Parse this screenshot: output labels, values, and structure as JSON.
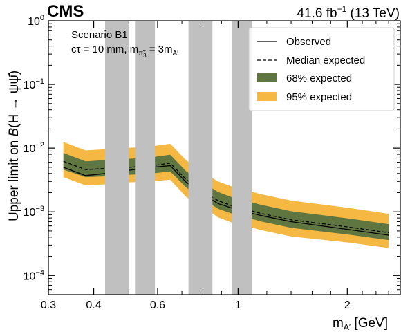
{
  "header": {
    "experiment": "CMS",
    "lumi_value": "41.6 fb",
    "lumi_exp": "−1",
    "energy": "(13 TeV)"
  },
  "annotation": {
    "scenario": "Scenario B1",
    "ctau_text": "cτ = 10 mm, m",
    "ctau_sub": "π̃",
    "ctau_sub2": "3",
    "ctau_mid": " = 3m",
    "ctau_sub3": "A′"
  },
  "axes": {
    "ylabel_main": "Upper limit on ",
    "ylabel_b": "B",
    "ylabel_proc": "(H → ψψ̄)",
    "xlabel_main": "m",
    "xlabel_sub": "A′",
    "xlabel_unit": " [GeV]"
  },
  "legend": {
    "observed": "Observed",
    "median": "Median expected",
    "band68": "68% expected",
    "band95": "95% expected"
  },
  "colors": {
    "band68": "#607641",
    "band95": "#F5B843",
    "veto": "#c0c0c0",
    "line": "#000000"
  },
  "chart_data": {
    "type": "line",
    "xscale": "log",
    "yscale": "log",
    "xlim": [
      0.3,
      2.8
    ],
    "ylim": [
      5e-05,
      1.0
    ],
    "x_ticks": [
      {
        "value": 0.3,
        "label": "0.3"
      },
      {
        "value": 0.4,
        "label": "0.4"
      },
      {
        "value": 0.6,
        "label": "0.6"
      },
      {
        "value": 1.0,
        "label": "1"
      },
      {
        "value": 2.0,
        "label": "2"
      }
    ],
    "y_ticks": [
      {
        "value": 0.0001,
        "base": "10",
        "exp": "−4"
      },
      {
        "value": 0.001,
        "base": "10",
        "exp": "−3"
      },
      {
        "value": 0.01,
        "base": "10",
        "exp": "−2"
      },
      {
        "value": 0.1,
        "base": "10",
        "exp": "−1"
      },
      {
        "value": 1.0,
        "base": "10",
        "exp": "0"
      }
    ],
    "veto_bands": [
      [
        0.43,
        0.5
      ],
      [
        0.52,
        0.59
      ],
      [
        0.73,
        0.85
      ],
      [
        0.96,
        1.09
      ]
    ],
    "x": [
      0.33,
      0.38,
      0.43,
      0.5,
      0.58,
      0.65,
      0.72,
      0.8,
      0.88,
      0.96,
      1.05,
      1.15,
      1.4,
      2.0,
      2.6
    ],
    "series": [
      {
        "name": "Observed",
        "values": [
          0.005,
          0.0037,
          0.004,
          0.0045,
          0.005,
          0.0053,
          0.0029,
          0.0019,
          0.00135,
          0.00115,
          0.001,
          0.00088,
          0.0007,
          0.00053,
          0.00043
        ]
      },
      {
        "name": "Median expected",
        "values": [
          0.0062,
          0.0046,
          0.0048,
          0.005,
          0.0053,
          0.0058,
          0.0032,
          0.0021,
          0.0015,
          0.00125,
          0.0011,
          0.00095,
          0.00075,
          0.00058,
          0.00047
        ]
      },
      {
        "name": "68% expected",
        "values_low": [
          0.0046,
          0.0035,
          0.0036,
          0.0038,
          0.004,
          0.0043,
          0.0024,
          0.0016,
          0.00112,
          0.00094,
          0.00083,
          0.00071,
          0.00056,
          0.00044,
          0.00036
        ],
        "values_high": [
          0.0084,
          0.0062,
          0.0065,
          0.0068,
          0.0072,
          0.0079,
          0.0043,
          0.0029,
          0.00205,
          0.0017,
          0.0015,
          0.0013,
          0.00102,
          0.00079,
          0.00064
        ]
      },
      {
        "name": "95% expected",
        "values_low": [
          0.0035,
          0.0026,
          0.0027,
          0.0029,
          0.003,
          0.0032,
          0.0017,
          0.0012,
          0.00082,
          0.00068,
          0.0006,
          0.00052,
          0.00041,
          0.00033,
          0.00027
        ],
        "values_high": [
          0.0125,
          0.0092,
          0.0096,
          0.0101,
          0.0107,
          0.0117,
          0.0064,
          0.0042,
          0.003,
          0.0025,
          0.0022,
          0.0019,
          0.0015,
          0.00116,
          0.00093
        ]
      }
    ]
  }
}
